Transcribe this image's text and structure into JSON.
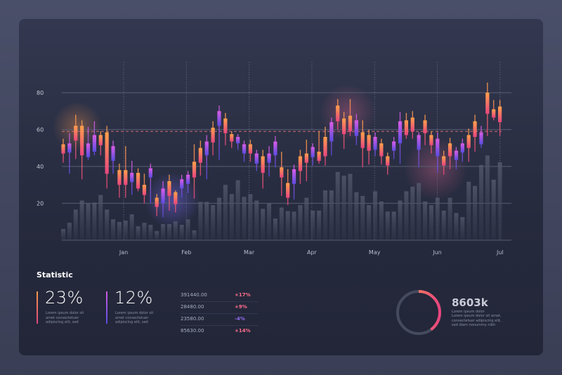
{
  "chart_data": {
    "type": "candlestick",
    "title": "",
    "ylim": [
      0,
      80
    ],
    "y_ticks": [
      "80",
      "60",
      "40",
      "20"
    ],
    "x_ticks": [
      "Jan",
      "Feb",
      "Mar",
      "Apr",
      "May",
      "Jun",
      "Jul"
    ],
    "reference_line": 59,
    "grid": true,
    "candle_fields": [
      "body_high",
      "body_low",
      "high",
      "low",
      "color"
    ],
    "candles": [
      [
        52,
        47,
        55,
        42,
        "warm"
      ],
      [
        52.5,
        47.5,
        58,
        36,
        "cool"
      ],
      [
        62,
        54,
        68,
        44,
        "warm"
      ],
      [
        62,
        46,
        65,
        33,
        "warm"
      ],
      [
        52.5,
        45,
        61.5,
        43.5,
        "cool"
      ],
      [
        57,
        48,
        64.5,
        46,
        "cool"
      ],
      [
        57,
        51.5,
        59,
        46,
        "warm"
      ],
      [
        58.5,
        36,
        62,
        28,
        "warm"
      ],
      [
        51,
        43,
        54,
        36,
        "cool"
      ],
      [
        38,
        30,
        41.5,
        23,
        "warm"
      ],
      [
        38,
        30,
        51,
        23,
        "warm"
      ],
      [
        36.5,
        31.5,
        43,
        24.5,
        "cool"
      ],
      [
        36.5,
        28,
        39,
        26.5,
        "warm"
      ],
      [
        30,
        24.5,
        36,
        20,
        "warm"
      ],
      [
        39,
        34,
        41.5,
        20,
        "cool"
      ],
      [
        23,
        18,
        25,
        13,
        "warm"
      ],
      [
        28,
        20,
        32,
        12.5,
        "cool"
      ],
      [
        32,
        24,
        35.5,
        16,
        "warm"
      ],
      [
        26,
        19.5,
        27,
        15,
        "warm"
      ],
      [
        33,
        28,
        35.5,
        23,
        "cool"
      ],
      [
        35.5,
        30.5,
        37.5,
        25.5,
        "cool"
      ],
      [
        42.5,
        34,
        52,
        22.5,
        "warm"
      ],
      [
        50,
        42,
        54,
        35,
        "warm"
      ],
      [
        53.5,
        46,
        57,
        33,
        "cool"
      ],
      [
        61,
        53,
        64.5,
        46,
        "warm"
      ],
      [
        70,
        62,
        73,
        43.5,
        "cool"
      ],
      [
        66,
        58,
        69,
        51.5,
        "warm"
      ],
      [
        57.5,
        53.5,
        59,
        50,
        "warm"
      ],
      [
        56,
        52.5,
        57.5,
        49,
        "cool"
      ],
      [
        52,
        47,
        54,
        42.5,
        "cool"
      ],
      [
        52,
        47,
        54.5,
        42.5,
        "warm"
      ],
      [
        47,
        41.5,
        49,
        37.5,
        "cool"
      ],
      [
        45.5,
        36.5,
        49,
        28,
        "warm"
      ],
      [
        47,
        42,
        51,
        34.5,
        "cool"
      ],
      [
        53.5,
        46,
        56.5,
        39.5,
        "cool"
      ],
      [
        39.5,
        34,
        48,
        24,
        "warm"
      ],
      [
        31,
        23,
        38.5,
        19,
        "warm"
      ],
      [
        38.5,
        30.5,
        41,
        22,
        "cool"
      ],
      [
        45.5,
        37.5,
        49,
        30.5,
        "warm"
      ],
      [
        47,
        42,
        54.5,
        32,
        "warm"
      ],
      [
        50.5,
        45,
        52.5,
        40.5,
        "cool"
      ],
      [
        48,
        43,
        59,
        41.5,
        "warm"
      ],
      [
        56,
        45.5,
        61.5,
        40.5,
        "warm"
      ],
      [
        64,
        53.5,
        66.5,
        46,
        "cool"
      ],
      [
        73,
        64.5,
        76.5,
        60,
        "warm"
      ],
      [
        66,
        57.5,
        69.5,
        49.5,
        "warm"
      ],
      [
        67.5,
        59,
        76.5,
        56.5,
        "warm"
      ],
      [
        65,
        56.5,
        68.5,
        51.5,
        "cool"
      ],
      [
        58.5,
        50,
        65,
        39.5,
        "warm"
      ],
      [
        57,
        48.5,
        60,
        41,
        "warm"
      ],
      [
        56,
        49,
        58.5,
        45.5,
        "cool"
      ],
      [
        52.5,
        45.5,
        55,
        41,
        "warm"
      ],
      [
        45.5,
        40.5,
        47.5,
        35.5,
        "warm"
      ],
      [
        53.5,
        48.5,
        56,
        44,
        "cool"
      ],
      [
        64.5,
        52.5,
        69.5,
        41.5,
        "cool"
      ],
      [
        65,
        57,
        69,
        55,
        "warm"
      ],
      [
        66.5,
        59,
        70,
        55,
        "warm"
      ],
      [
        57,
        49,
        58.5,
        39.5,
        "cool"
      ],
      [
        65,
        58,
        68,
        51.5,
        "warm"
      ],
      [
        57,
        51.5,
        59,
        47,
        "warm"
      ],
      [
        55,
        45.5,
        58.5,
        36.5,
        "cool"
      ],
      [
        45.5,
        40.5,
        48.5,
        35.5,
        "warm"
      ],
      [
        52.5,
        45.5,
        55.5,
        38.5,
        "warm"
      ],
      [
        48.5,
        43.5,
        50.5,
        38.5,
        "cool"
      ],
      [
        52.5,
        47.5,
        55,
        42.5,
        "cool"
      ],
      [
        57,
        50,
        60.5,
        42.5,
        "warm"
      ],
      [
        64.5,
        56,
        68,
        48,
        "warm"
      ],
      [
        58.5,
        52,
        62,
        50,
        "cool"
      ],
      [
        80,
        68.5,
        85.5,
        56.5,
        "warm"
      ],
      [
        71,
        66.5,
        76,
        65,
        "warm"
      ],
      [
        72.5,
        64,
        76,
        56.5,
        "warm"
      ]
    ],
    "volume": [
      6,
      9.4,
      16.6,
      21.5,
      20,
      20.4,
      24.5,
      16.6,
      11.3,
      9.8,
      10.6,
      14,
      7.5,
      9.4,
      8.3,
      4.9,
      8.7,
      8.7,
      10.2,
      8.3,
      11.3,
      5.3,
      20.8,
      20.8,
      19,
      23,
      30,
      25,
      32.5,
      23.5,
      25,
      21.5,
      17,
      20,
      11.7,
      17.7,
      15.8,
      15.5,
      19,
      23,
      16,
      16,
      27,
      27,
      37,
      35,
      36,
      26,
      24,
      19,
      26.5,
      21,
      15.5,
      15.5,
      21.5,
      26.5,
      29,
      31,
      21,
      19,
      23,
      16,
      23,
      14.7,
      12.5,
      31.7,
      29.4,
      40.8,
      46,
      32.8,
      42.3
    ],
    "colors": {
      "warm_top": "#ffa04a",
      "warm_bottom": "#e8457f",
      "cool_top": "#d95ce6",
      "cool_bottom": "#5a4ce0"
    }
  },
  "statistic": {
    "title": "Statistic",
    "cards": [
      {
        "value": "23%",
        "text": [
          "Lorem ipsum dolor sit",
          "amet consectetuer",
          "adipiscing elit, sed"
        ]
      },
      {
        "value": "12%",
        "text": [
          "Lorem ipsum dolor sit",
          "amet consectetuer",
          "adipiscing elit, sed"
        ]
      }
    ],
    "table": [
      {
        "value": "391440.00",
        "change": "+17%",
        "color": "#ff6f8e"
      },
      {
        "value": "28480.00",
        "change": "+9%",
        "color": "#ff6f8e"
      },
      {
        "value": "23580.00",
        "change": "-4%",
        "color": "#8f6cf0"
      },
      {
        "value": "85630.00",
        "change": "+14%",
        "color": "#ff6f8e"
      }
    ],
    "ring": {
      "value": "8603k",
      "progress": 0.4,
      "text": [
        "Lorem ipsum dolor",
        "Lorem ipsum dolor sit amet,",
        "consectetuer adipiscing elit,",
        "sed diam nonummy nibh"
      ]
    }
  }
}
